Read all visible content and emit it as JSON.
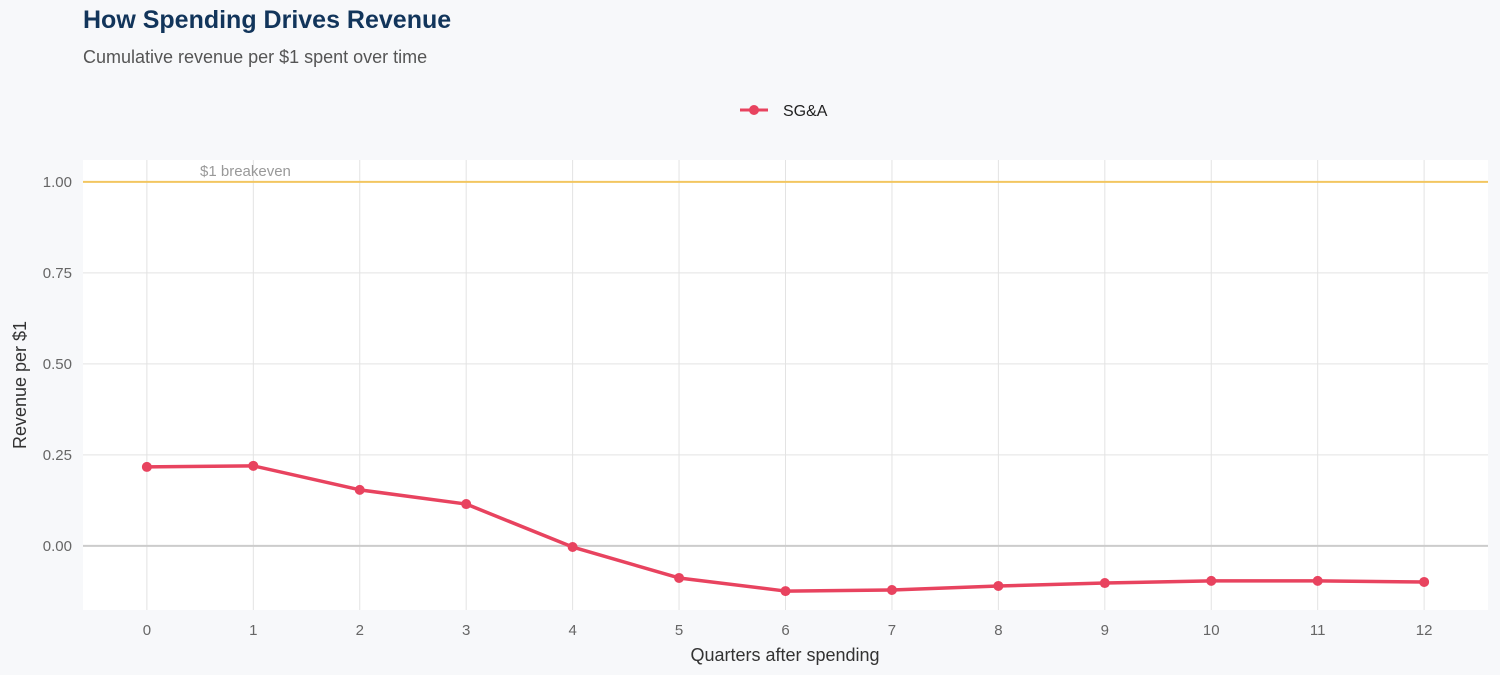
{
  "chart_data": {
    "type": "line",
    "title": "How Spending Drives Revenue",
    "subtitle": "Cumulative revenue per $1 spent over time",
    "xlabel": "Quarters after spending",
    "ylabel": "Revenue per $1",
    "x": [
      0,
      1,
      2,
      3,
      4,
      5,
      6,
      7,
      8,
      9,
      10,
      11,
      12
    ],
    "series": [
      {
        "name": "SG&A",
        "color": "#e8435f",
        "values": [
          0.217,
          0.22,
          0.154,
          0.115,
          -0.003,
          -0.088,
          -0.124,
          -0.121,
          -0.11,
          -0.102,
          -0.096,
          -0.096,
          -0.099
        ]
      }
    ],
    "xlim": [
      -0.6,
      12.6
    ],
    "ylim": [
      -0.176,
      1.06
    ],
    "yticks": [
      "0.00",
      "0.25",
      "0.50",
      "0.75",
      "1.00"
    ],
    "ytick_values": [
      0,
      0.25,
      0.5,
      0.75,
      1.0
    ],
    "xticks": [
      "0",
      "1",
      "2",
      "3",
      "4",
      "5",
      "6",
      "7",
      "8",
      "9",
      "10",
      "11",
      "12"
    ],
    "reference_line": {
      "y": 1.0,
      "label": "$1 breakeven",
      "color": "#f2c661"
    },
    "zero_line_color": "#cccccc",
    "grid": true,
    "legend": "top-center"
  }
}
